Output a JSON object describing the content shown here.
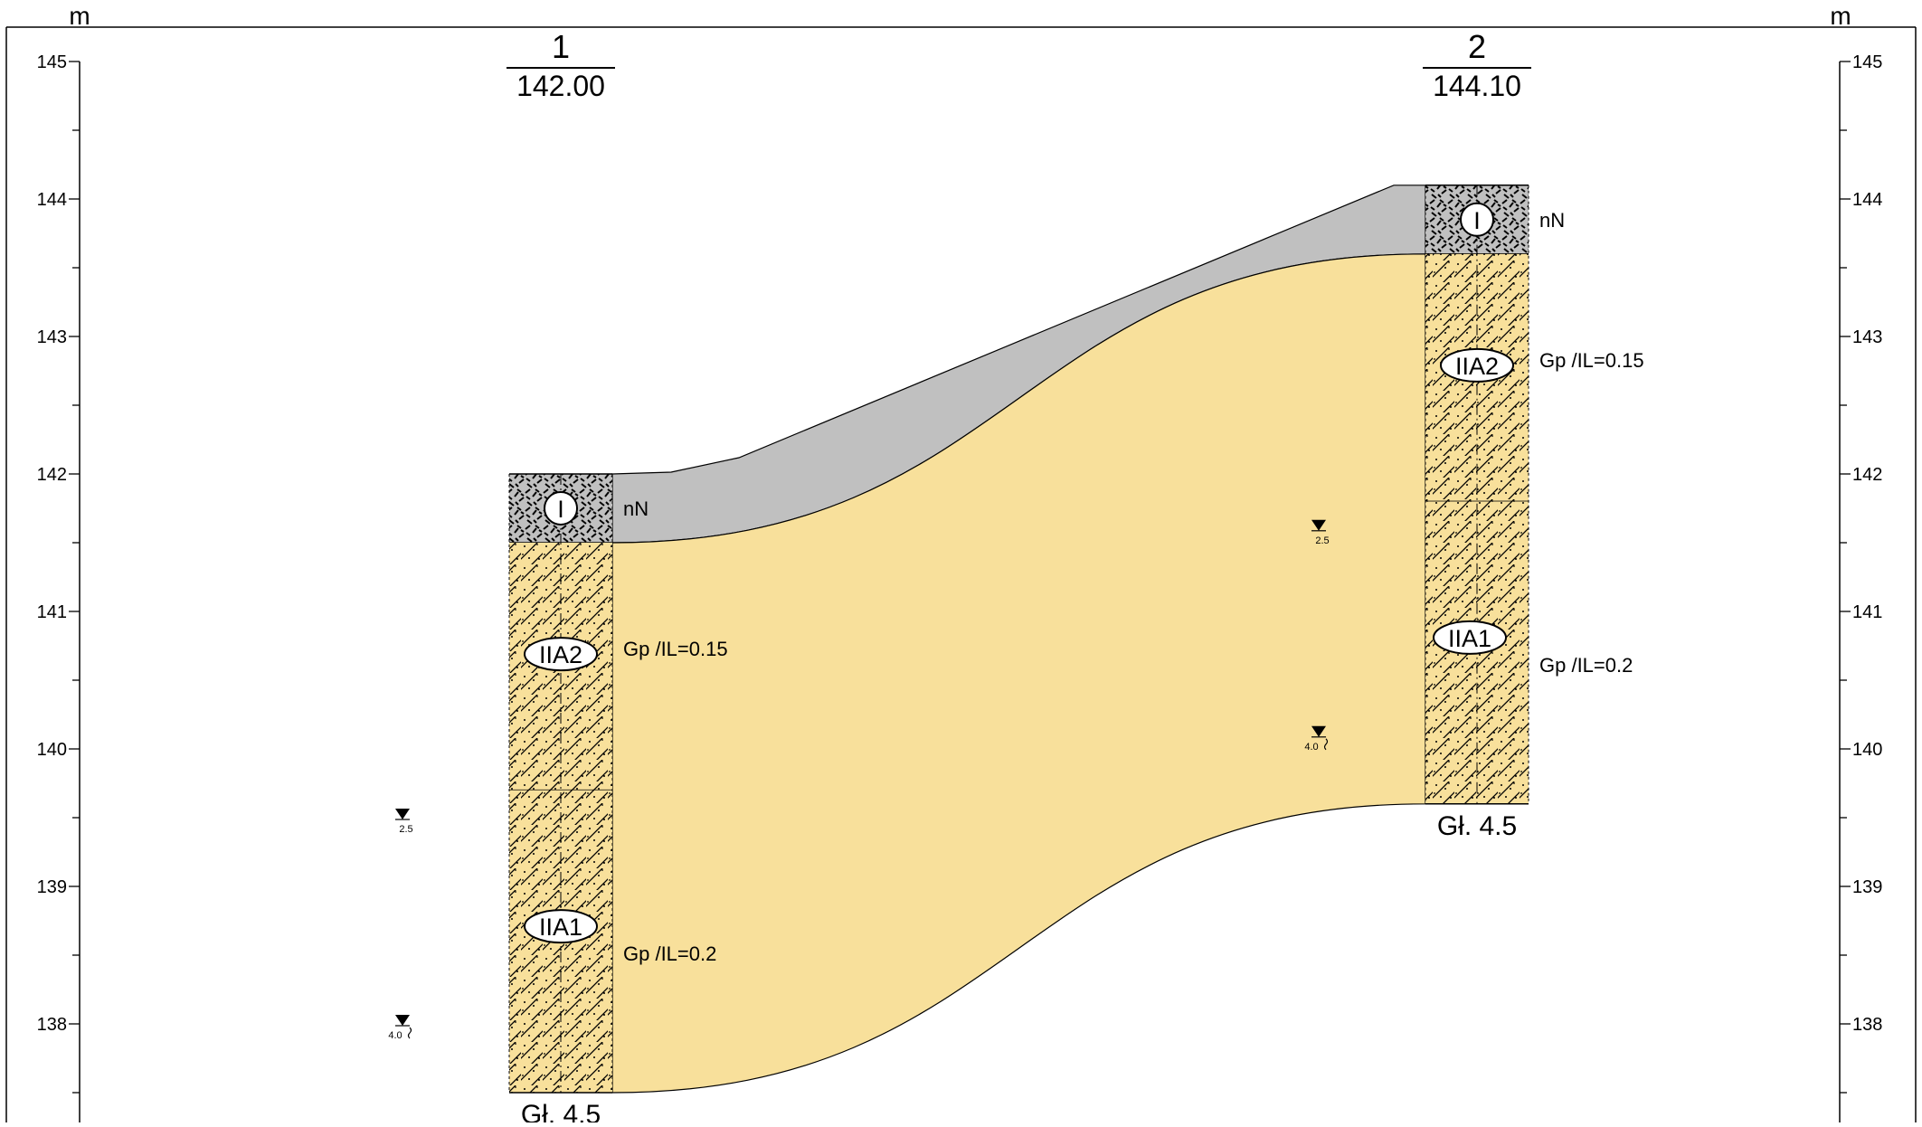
{
  "units": {
    "left": "m",
    "right": "m"
  },
  "axis": {
    "min": 137.5,
    "max": 145,
    "minor_step": 0.5,
    "labels": [
      "145",
      "144",
      "143",
      "142",
      "141",
      "140",
      "139",
      "138"
    ]
  },
  "boreholes": [
    {
      "number": "1",
      "elevation": "142.00",
      "surface": 142.0,
      "depth_label": "Gł. 4.5",
      "layers": [
        {
          "code": "I",
          "top": 142.0,
          "bottom": 141.5,
          "soil": "fill",
          "label": "nN"
        },
        {
          "code": "IIA2",
          "top": 141.5,
          "bottom": 139.7,
          "soil": "clayey-sand",
          "label": "Gp /IL=0.15"
        },
        {
          "code": "IIA1",
          "top": 139.7,
          "bottom": 137.5,
          "soil": "clayey-sand",
          "label": "Gp /IL=0.2"
        }
      ],
      "water": [
        {
          "elevation": 139.5,
          "label": "2.5",
          "type": "observed"
        },
        {
          "elevation": 138.0,
          "label": "4.0",
          "type": "stabilized"
        }
      ]
    },
    {
      "number": "2",
      "elevation": "144.10",
      "surface": 144.1,
      "depth_label": "Gł. 4.5",
      "layers": [
        {
          "code": "I",
          "top": 144.1,
          "bottom": 143.6,
          "soil": "fill",
          "label": "nN"
        },
        {
          "code": "IIA2",
          "top": 143.6,
          "bottom": 141.8,
          "soil": "clayey-sand",
          "label": "Gp /IL=0.15"
        },
        {
          "code": "IIA1",
          "top": 141.8,
          "bottom": 139.6,
          "soil": "clayey-sand",
          "label": "Gp /IL=0.2"
        }
      ],
      "water": [
        {
          "elevation": 141.6,
          "label": "2.5",
          "type": "observed"
        },
        {
          "elevation": 140.1,
          "label": "4.0",
          "type": "stabilized"
        }
      ]
    }
  ],
  "colors": {
    "fill_layer": "#c0c0c0",
    "sand_layer": "#f8e09b",
    "line": "#000000"
  }
}
